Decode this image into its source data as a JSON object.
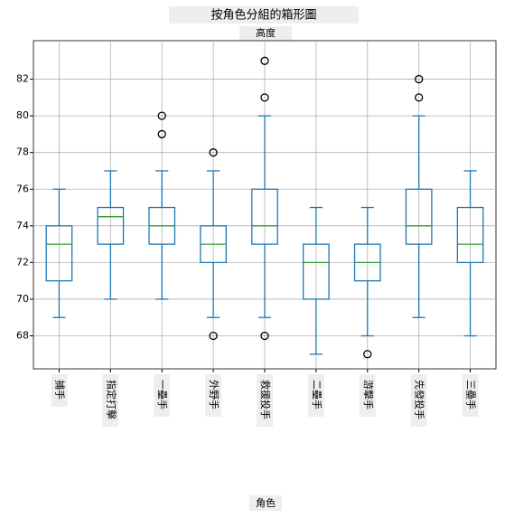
{
  "chart_data": {
    "type": "box",
    "title": "按角色分組的箱形圖",
    "subtitle": "高度",
    "x_label": "角色",
    "categories": [
      "捕手",
      "指定打擊",
      "一壘手",
      "外野手",
      "救援投手",
      "二壘手",
      "游擊手",
      "先發投手",
      "三壘手"
    ],
    "boxes": [
      {
        "min": 69,
        "q1": 71,
        "median": 73,
        "q3": 74,
        "max": 76,
        "outliers": []
      },
      {
        "min": 70,
        "q1": 73,
        "median": 74.5,
        "q3": 75,
        "max": 77,
        "outliers": []
      },
      {
        "min": 70,
        "q1": 73,
        "median": 74,
        "q3": 75,
        "max": 77,
        "outliers": [
          79,
          80
        ]
      },
      {
        "min": 69,
        "q1": 72,
        "median": 73,
        "q3": 74,
        "max": 77,
        "outliers": [
          68,
          78
        ]
      },
      {
        "min": 69,
        "q1": 73,
        "median": 74,
        "q3": 76,
        "max": 80,
        "outliers": [
          68,
          81,
          83
        ]
      },
      {
        "min": 67,
        "q1": 70,
        "median": 72,
        "q3": 73,
        "max": 75,
        "outliers": []
      },
      {
        "min": 68,
        "q1": 71,
        "median": 72,
        "q3": 73,
        "max": 75,
        "outliers": [
          67
        ]
      },
      {
        "min": 69,
        "q1": 73,
        "median": 74,
        "q3": 76,
        "max": 80,
        "outliers": [
          81,
          82
        ]
      },
      {
        "min": 68,
        "q1": 72,
        "median": 73,
        "q3": 75,
        "max": 77,
        "outliers": []
      }
    ],
    "box_color": "#1f77b4",
    "median_color": "#2ca02c",
    "outlier_color": "#000000",
    "ylim": [
      66.2,
      84.1
    ],
    "yticks": [
      68,
      70,
      72,
      74,
      76,
      78,
      80,
      82
    ],
    "grid": true
  }
}
